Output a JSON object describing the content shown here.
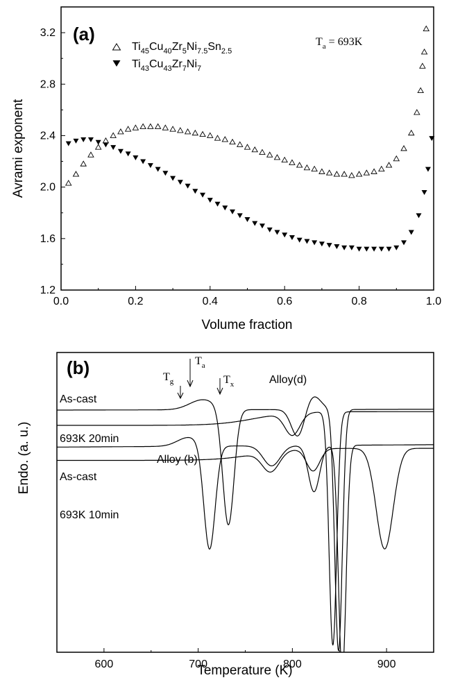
{
  "chart_data": [
    {
      "panel_label": "(a)",
      "type": "scatter",
      "xlabel": "Volume fraction",
      "ylabel": "Avrami exponent",
      "xlim": [
        0.0,
        1.0
      ],
      "ylim": [
        1.2,
        3.4
      ],
      "xticks": [
        "0.0",
        "0.2",
        "0.4",
        "0.6",
        "0.8",
        "1.0"
      ],
      "yticks": [
        "1.2",
        "1.6",
        "2.0",
        "2.4",
        "2.8",
        "3.2"
      ],
      "annotation": {
        "symbol": "T",
        "sub": "a",
        "rest": " = 693K"
      },
      "legend_position": "top-left",
      "series": [
        {
          "name": "Ti45Cu40Zr5Ni7.5Sn2.5",
          "marker": "open-triangle-up",
          "points": [
            [
              0.02,
              2.03
            ],
            [
              0.04,
              2.1
            ],
            [
              0.06,
              2.18
            ],
            [
              0.08,
              2.25
            ],
            [
              0.1,
              2.31
            ],
            [
              0.12,
              2.36
            ],
            [
              0.14,
              2.4
            ],
            [
              0.16,
              2.43
            ],
            [
              0.18,
              2.45
            ],
            [
              0.2,
              2.46
            ],
            [
              0.22,
              2.47
            ],
            [
              0.24,
              2.47
            ],
            [
              0.26,
              2.47
            ],
            [
              0.28,
              2.46
            ],
            [
              0.3,
              2.45
            ],
            [
              0.32,
              2.44
            ],
            [
              0.34,
              2.43
            ],
            [
              0.36,
              2.42
            ],
            [
              0.38,
              2.41
            ],
            [
              0.4,
              2.4
            ],
            [
              0.42,
              2.38
            ],
            [
              0.44,
              2.37
            ],
            [
              0.46,
              2.35
            ],
            [
              0.48,
              2.33
            ],
            [
              0.5,
              2.31
            ],
            [
              0.52,
              2.29
            ],
            [
              0.54,
              2.27
            ],
            [
              0.56,
              2.25
            ],
            [
              0.58,
              2.23
            ],
            [
              0.6,
              2.21
            ],
            [
              0.62,
              2.19
            ],
            [
              0.64,
              2.17
            ],
            [
              0.66,
              2.15
            ],
            [
              0.68,
              2.14
            ],
            [
              0.7,
              2.12
            ],
            [
              0.72,
              2.11
            ],
            [
              0.74,
              2.1
            ],
            [
              0.76,
              2.1
            ],
            [
              0.78,
              2.09
            ],
            [
              0.8,
              2.1
            ],
            [
              0.82,
              2.11
            ],
            [
              0.84,
              2.12
            ],
            [
              0.86,
              2.14
            ],
            [
              0.88,
              2.17
            ],
            [
              0.9,
              2.22
            ],
            [
              0.92,
              2.3
            ],
            [
              0.94,
              2.42
            ],
            [
              0.955,
              2.58
            ],
            [
              0.965,
              2.75
            ],
            [
              0.97,
              2.94
            ],
            [
              0.975,
              3.05
            ],
            [
              0.98,
              3.23
            ]
          ]
        },
        {
          "name": "Ti43Cu43Zr7Ni7",
          "marker": "filled-triangle-down",
          "points": [
            [
              0.02,
              2.34
            ],
            [
              0.04,
              2.36
            ],
            [
              0.06,
              2.37
            ],
            [
              0.08,
              2.37
            ],
            [
              0.1,
              2.35
            ],
            [
              0.12,
              2.33
            ],
            [
              0.14,
              2.31
            ],
            [
              0.16,
              2.28
            ],
            [
              0.18,
              2.26
            ],
            [
              0.2,
              2.23
            ],
            [
              0.22,
              2.2
            ],
            [
              0.24,
              2.17
            ],
            [
              0.26,
              2.14
            ],
            [
              0.28,
              2.11
            ],
            [
              0.3,
              2.07
            ],
            [
              0.32,
              2.04
            ],
            [
              0.34,
              2.01
            ],
            [
              0.36,
              1.97
            ],
            [
              0.38,
              1.94
            ],
            [
              0.4,
              1.9
            ],
            [
              0.42,
              1.87
            ],
            [
              0.44,
              1.84
            ],
            [
              0.46,
              1.81
            ],
            [
              0.48,
              1.78
            ],
            [
              0.5,
              1.75
            ],
            [
              0.52,
              1.72
            ],
            [
              0.54,
              1.7
            ],
            [
              0.56,
              1.67
            ],
            [
              0.58,
              1.65
            ],
            [
              0.6,
              1.63
            ],
            [
              0.62,
              1.61
            ],
            [
              0.64,
              1.59
            ],
            [
              0.66,
              1.58
            ],
            [
              0.68,
              1.57
            ],
            [
              0.7,
              1.56
            ],
            [
              0.72,
              1.55
            ],
            [
              0.74,
              1.54
            ],
            [
              0.76,
              1.53
            ],
            [
              0.78,
              1.53
            ],
            [
              0.8,
              1.52
            ],
            [
              0.82,
              1.52
            ],
            [
              0.84,
              1.52
            ],
            [
              0.86,
              1.52
            ],
            [
              0.88,
              1.52
            ],
            [
              0.9,
              1.53
            ],
            [
              0.92,
              1.57
            ],
            [
              0.94,
              1.65
            ],
            [
              0.96,
              1.78
            ],
            [
              0.975,
              1.96
            ],
            [
              0.985,
              2.14
            ],
            [
              0.995,
              2.38
            ]
          ]
        }
      ]
    },
    {
      "panel_label": "(b)",
      "type": "line",
      "xlabel": "Temperature (K)",
      "ylabel": "Endo. (a. u.)",
      "xlim": [
        550,
        950
      ],
      "xticks": [
        "600",
        "700",
        "800",
        "900"
      ],
      "group_labels": [
        "Alloy(d)",
        "Alloy (b)"
      ],
      "markers": [
        {
          "symbol": "T",
          "sub": "g",
          "temperature": 685
        },
        {
          "symbol": "T",
          "sub": "a",
          "temperature": 693
        },
        {
          "symbol": "T",
          "sub": "x",
          "temperature": 722
        }
      ],
      "series": [
        {
          "name": "As-cast",
          "group": "Alloy(d)",
          "baseline": 1.0,
          "slope": 0.02,
          "peaks": [
            [
              705,
              0.25,
              14
            ],
            [
              732,
              -2.9,
              6
            ],
            [
              806,
              -0.7,
              7
            ],
            [
              822,
              0.35,
              8
            ],
            [
              849,
              -6.0,
              4
            ]
          ]
        },
        {
          "name": "693K 20min",
          "group": "Alloy(d)",
          "baseline": 0.62,
          "slope": 0.34,
          "peaks": [
            [
              800,
              -0.55,
              8
            ],
            [
              843,
              -5.8,
              4
            ]
          ]
        },
        {
          "name": "As-cast",
          "group": "Alloy (b)",
          "baseline": 0.08,
          "slope": 0.06,
          "peaks": [
            [
              690,
              0.22,
              12
            ],
            [
              712,
              -2.6,
              6
            ],
            [
              778,
              -0.5,
              9
            ],
            [
              823,
              -1.15,
              6
            ],
            [
              853,
              -5.7,
              4
            ]
          ]
        },
        {
          "name": "693K 10min",
          "group": "Alloy (b)",
          "baseline": -0.25,
          "slope": 0.3,
          "peaks": [
            [
              777,
              -0.5,
              9
            ],
            [
              822,
              -0.55,
              7
            ],
            [
              898,
              -2.5,
              9
            ]
          ]
        }
      ]
    }
  ]
}
